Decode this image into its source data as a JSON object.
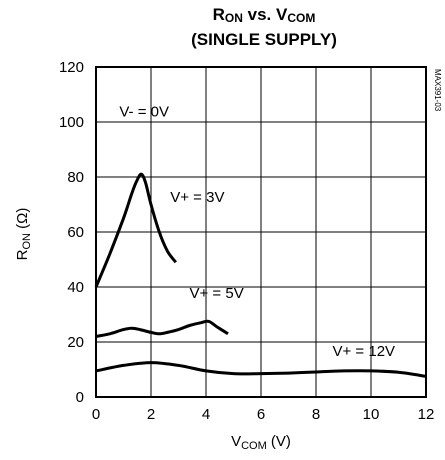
{
  "chart_data": {
    "type": "line",
    "title_main": "R",
    "title_sub1": "ON",
    "title_vs": " vs. V",
    "title_sub2": "COM",
    "title_line2": "(SINGLE SUPPLY)",
    "xlabel_main": "V",
    "xlabel_sub": "COM",
    "xlabel_unit": " (V)",
    "ylabel_main": "R",
    "ylabel_sub": "ON",
    "ylabel_unit": " (Ω)",
    "xlim": [
      0,
      12
    ],
    "ylim": [
      0,
      120
    ],
    "x_ticks": [
      "0",
      "2",
      "4",
      "6",
      "8",
      "10",
      "12"
    ],
    "y_ticks": [
      "0",
      "20",
      "40",
      "60",
      "80",
      "100",
      "120"
    ],
    "grid": true,
    "annotation": "V- = 0V",
    "code_label": "MAX391-03",
    "series": [
      {
        "name": "V+ = 3V",
        "color": "#000000",
        "x": [
          0,
          0.5,
          1,
          1.3,
          1.5,
          1.65,
          1.8,
          2.0,
          2.3,
          2.6,
          2.9
        ],
        "y": [
          40,
          52,
          65,
          74,
          79,
          81,
          78,
          70,
          60,
          53,
          49
        ]
      },
      {
        "name": "V+ = 5V",
        "color": "#000000",
        "x": [
          0,
          0.5,
          1.0,
          1.3,
          1.6,
          2.0,
          2.3,
          2.6,
          3.0,
          3.4,
          3.8,
          4.1,
          4.4,
          4.8
        ],
        "y": [
          22,
          23,
          24.5,
          25,
          24.5,
          23.5,
          23,
          23.5,
          24.5,
          26,
          27,
          27.5,
          25.5,
          23
        ]
      },
      {
        "name": "V+ = 12V",
        "color": "#000000",
        "x": [
          0,
          1,
          2,
          3,
          4,
          5,
          6,
          7,
          8,
          9,
          10,
          11,
          12
        ],
        "y": [
          9.5,
          11.5,
          12.5,
          11.5,
          9.5,
          8.5,
          8.5,
          8.7,
          9.1,
          9.5,
          9.5,
          9.0,
          7.5
        ]
      }
    ],
    "series_label_anchor": [
      {
        "x": 2.7,
        "y": 71
      },
      {
        "x": 3.4,
        "y": 36
      },
      {
        "x": 8.6,
        "y": 15
      }
    ]
  }
}
